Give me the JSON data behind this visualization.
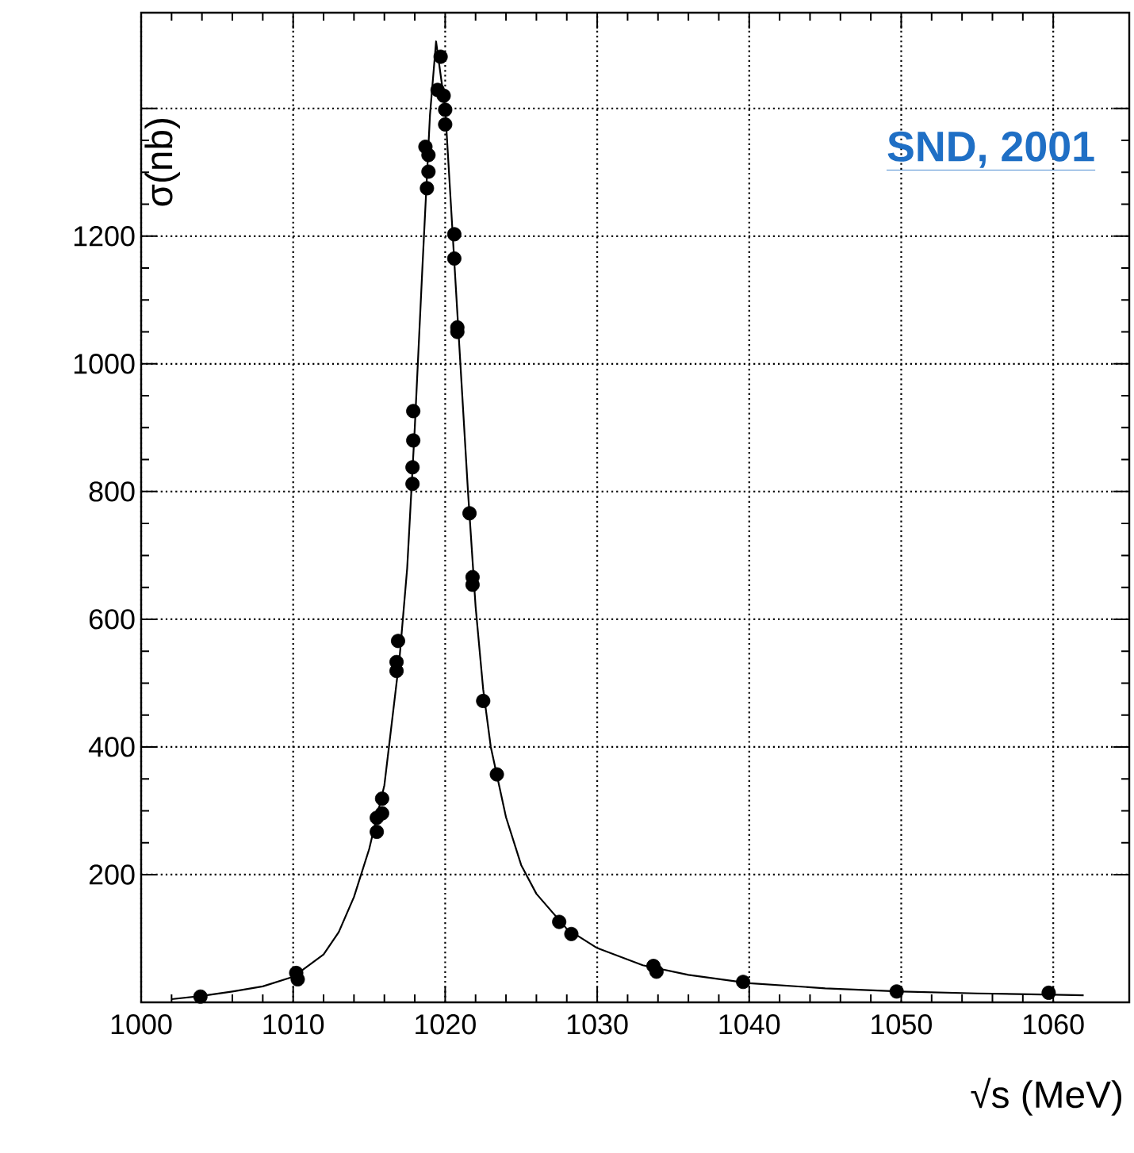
{
  "chart_data": {
    "type": "scatter",
    "xlabel": "√s   (MeV)",
    "ylabel": "σ(nb)",
    "annotations": [
      "SND, 2001"
    ],
    "xlim": [
      1000,
      1065
    ],
    "ylim": [
      0,
      1550
    ],
    "xticks": [
      1000,
      1010,
      1020,
      1030,
      1040,
      1050,
      1060
    ],
    "yticks": [
      200,
      400,
      600,
      800,
      1000,
      1200,
      {
        "value": 1400,
        "label": null
      }
    ],
    "grid": true,
    "series": [
      {
        "color": "#000000",
        "marker": "circle",
        "x": [
          1003.9,
          1010.2,
          1010.3,
          1015.5,
          1015.5,
          1015.85,
          1015.85,
          1016.8,
          1016.8,
          1016.9,
          1017.85,
          1017.85,
          1017.9,
          1017.9,
          1018.7,
          1018.8,
          1018.9,
          1018.9,
          1019.5,
          1019.7,
          1019.9,
          1020.0,
          1020.0,
          1020.6,
          1020.6,
          1020.8,
          1020.8,
          1021.6,
          1021.8,
          1021.8,
          1022.5,
          1023.4,
          1027.5,
          1028.3,
          1033.7,
          1033.9,
          1039.6,
          1049.7,
          1059.7
        ],
        "values": [
          9,
          46,
          36,
          267,
          289,
          296,
          319,
          519,
          533,
          566,
          812,
          838,
          880,
          926,
          1340,
          1275,
          1301,
          1327,
          1429,
          1481,
          1420,
          1398,
          1375,
          1203,
          1165,
          1057,
          1050,
          766,
          666,
          654,
          472,
          357,
          126,
          107,
          57,
          48,
          32,
          17,
          15
        ]
      },
      {
        "type": "line",
        "color": "#000000",
        "marker": "none",
        "line_style": "solid",
        "x": [
          1002,
          1004,
          1006,
          1008,
          1010,
          1012,
          1013,
          1014,
          1015,
          1016,
          1017,
          1017.5,
          1018,
          1018.5,
          1019,
          1019.4,
          1020,
          1020.5,
          1021,
          1021.5,
          1022,
          1022.5,
          1023,
          1024,
          1025,
          1026,
          1028,
          1030,
          1033,
          1036,
          1040,
          1045,
          1050,
          1055,
          1060,
          1062
        ],
        "values": [
          5,
          10,
          17,
          25,
          40,
          75,
          110,
          165,
          240,
          340,
          540,
          680,
          900,
          1150,
          1390,
          1505,
          1400,
          1200,
          1000,
          800,
          620,
          490,
          400,
          290,
          215,
          170,
          115,
          85,
          58,
          43,
          30,
          22,
          17,
          14,
          12,
          11
        ]
      }
    ]
  }
}
